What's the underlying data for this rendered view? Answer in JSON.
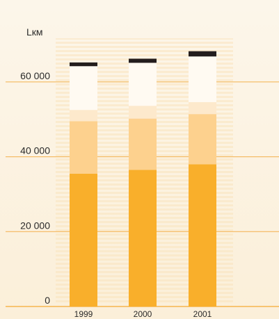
{
  "chart_data": {
    "type": "bar",
    "stacked": true,
    "unit_label": "Lкм",
    "categories": [
      "1999",
      "2000",
      "2001"
    ],
    "y_ticks": [
      "0",
      "20 000",
      "40 000",
      "60 000"
    ],
    "ylim": [
      0,
      70000
    ],
    "grid": true,
    "series": [
      {
        "values": [
          35500,
          36500,
          38000
        ],
        "color": "#f9af2b"
      },
      {
        "values": [
          14000,
          13700,
          13400
        ],
        "color": "#fdd18e"
      },
      {
        "values": [
          3000,
          3400,
          3200
        ],
        "color": "#fde9cc"
      },
      {
        "values": [
          11700,
          11500,
          12200
        ],
        "color": "#fffaf2"
      },
      {
        "values": [
          1000,
          1100,
          1400
        ],
        "color": "#231d1d"
      }
    ]
  },
  "colors": {
    "background": "#fbf3e4",
    "gridline": "#f3b04b",
    "axis": "#f6b54f",
    "text": "#2a2a2a"
  }
}
